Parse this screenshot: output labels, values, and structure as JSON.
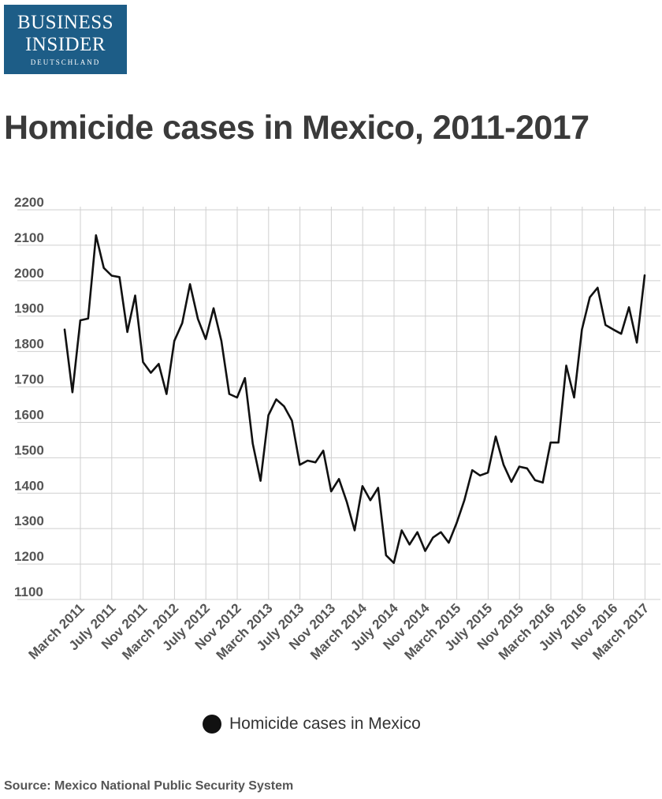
{
  "logo": {
    "line1": "BUSINESS",
    "line2": "INSIDER",
    "line3": "DEUTSCHLAND",
    "background": "#1d5d87"
  },
  "title": "Homicide cases in Mexico, 2011-2017",
  "legend_label": "Homicide cases in Mexico",
  "source": "Source: Mexico National Public Security System",
  "chart_data": {
    "type": "line",
    "title": "Homicide cases in Mexico, 2011-2017",
    "xlabel": "",
    "ylabel": "",
    "ylim": [
      1100,
      2200
    ],
    "y_ticks": [
      1100,
      1200,
      1300,
      1400,
      1500,
      1600,
      1700,
      1800,
      1900,
      2000,
      2100,
      2200
    ],
    "categories": [
      "March 2011",
      "July 2011",
      "Nov 2011",
      "March 2012",
      "July 2012",
      "Nov 2012",
      "March 2013",
      "July 2013",
      "Nov 2013",
      "March 2014",
      "July 2014",
      "Nov 2014",
      "March 2015",
      "July 2015",
      "Nov 2015",
      "March 2016",
      "July 2016",
      "Nov 2016",
      "March 2017"
    ],
    "grid": true,
    "legend_position": "bottom",
    "line_color": "#111111",
    "series": [
      {
        "name": "Homicide cases in Mexico",
        "x": [
          "2011-03",
          "2011-04",
          "2011-05",
          "2011-06",
          "2011-07",
          "2011-08",
          "2011-09",
          "2011-10",
          "2011-11",
          "2011-12",
          "2012-01",
          "2012-02",
          "2012-03",
          "2012-04",
          "2012-05",
          "2012-06",
          "2012-07",
          "2012-08",
          "2012-09",
          "2012-10",
          "2012-11",
          "2012-12",
          "2013-01",
          "2013-02",
          "2013-03",
          "2013-04",
          "2013-05",
          "2013-06",
          "2013-07",
          "2013-08",
          "2013-09",
          "2013-10",
          "2013-11",
          "2013-12",
          "2014-01",
          "2014-02",
          "2014-03",
          "2014-04",
          "2014-05",
          "2014-06",
          "2014-07",
          "2014-08",
          "2014-09",
          "2014-10",
          "2014-11",
          "2014-12",
          "2015-01",
          "2015-02",
          "2015-03",
          "2015-04",
          "2015-05",
          "2015-06",
          "2015-07",
          "2015-08",
          "2015-09",
          "2015-10",
          "2015-11",
          "2015-12",
          "2016-01",
          "2016-02",
          "2016-03",
          "2016-04",
          "2016-05",
          "2016-06",
          "2016-07",
          "2016-08",
          "2016-09",
          "2016-10",
          "2016-11",
          "2016-12",
          "2017-01",
          "2017-02",
          "2017-03",
          "2017-04",
          "2017-05"
        ],
        "values": [
          1862,
          1685,
          1888,
          1893,
          2128,
          2036,
          2014,
          2010,
          1855,
          1958,
          1770,
          1740,
          1765,
          1680,
          1830,
          1880,
          1990,
          1892,
          1835,
          1922,
          1830,
          1680,
          1670,
          1725,
          1540,
          1435,
          1620,
          1665,
          1645,
          1605,
          1480,
          1492,
          1487,
          1520,
          1405,
          1440,
          1375,
          1295,
          1420,
          1380,
          1415,
          1225,
          1203,
          1295,
          1255,
          1290,
          1237,
          1275,
          1290,
          1260,
          1315,
          1380,
          1465,
          1450,
          1458,
          1560,
          1480,
          1432,
          1475,
          1470,
          1437,
          1430,
          1543,
          1543,
          1760,
          1670,
          1862,
          1953,
          1980,
          1875,
          1862,
          1850,
          1925,
          1825,
          2015
        ]
      }
    ]
  }
}
